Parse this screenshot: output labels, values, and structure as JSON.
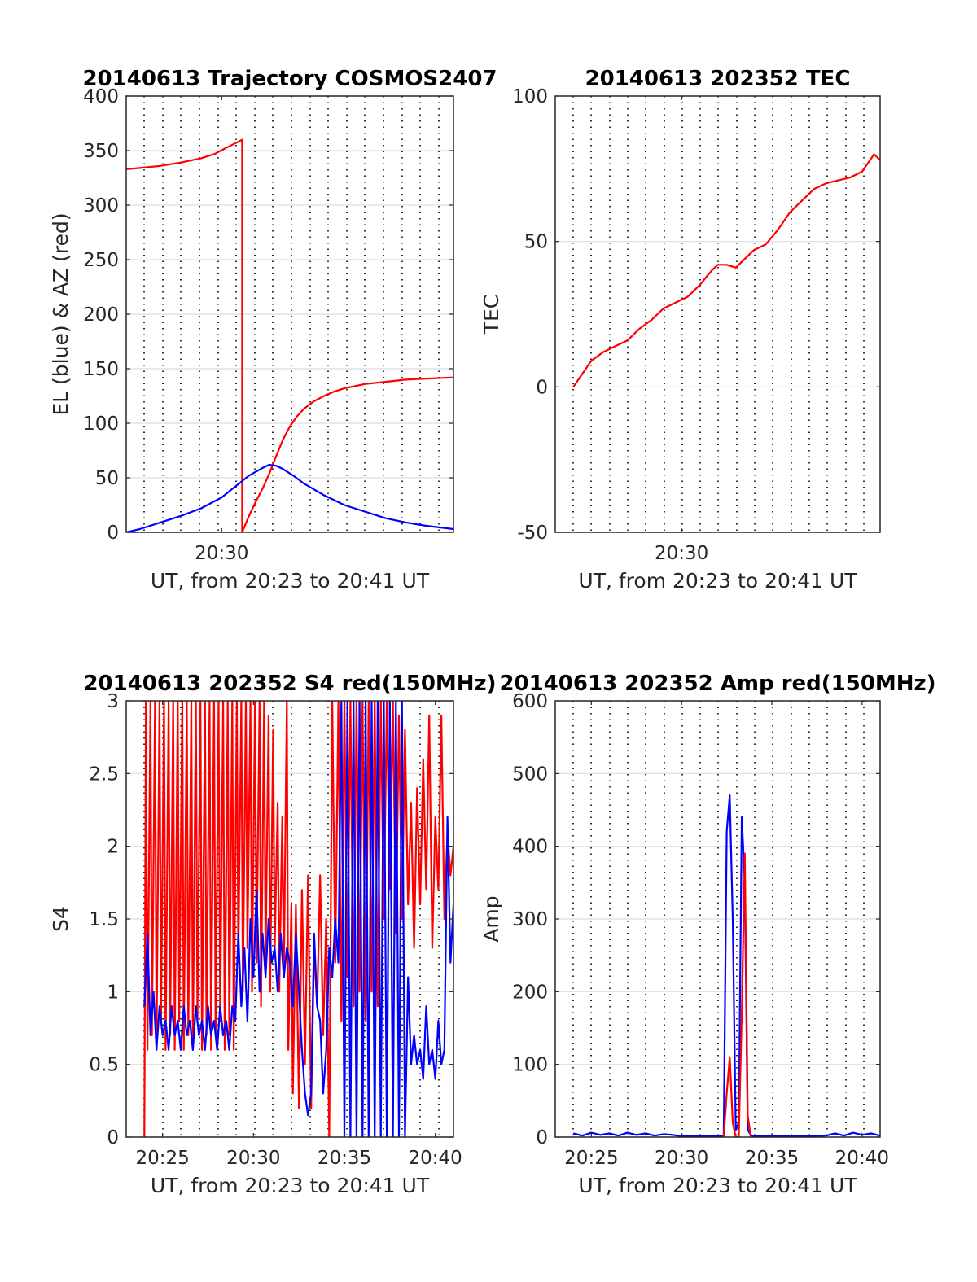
{
  "chart_data": [
    {
      "id": "trajectory",
      "type": "line",
      "title": "20140613 Trajectory COSMOS2407",
      "xlabel": "UT, from 20:23 to 20:41 UT",
      "ylabel": "EL (blue) & AZ (red)",
      "xlim": [
        "20:25:20",
        "20:41:20"
      ],
      "ylim": [
        0,
        400
      ],
      "yticks": [
        0,
        50,
        100,
        150,
        200,
        250,
        300,
        350,
        400
      ],
      "xticks": [
        {
          "value": "20:30",
          "label": "20:30"
        }
      ],
      "grid": true,
      "series": [
        {
          "color": "#ff0000",
          "x": [
            "20:25:20",
            "20:26:00",
            "20:27:00",
            "20:28:00",
            "20:29:00",
            "20:29:40",
            "20:30:10",
            "20:30:48",
            "20:31:00",
            "20:31:00",
            "20:31:20",
            "20:31:40",
            "20:32:00",
            "20:32:20",
            "20:32:40",
            "20:33:00",
            "20:33:20",
            "20:33:40",
            "20:34:00",
            "20:34:30",
            "20:35:00",
            "20:35:30",
            "20:36:00",
            "20:37:00",
            "20:38:00",
            "20:39:00",
            "20:40:00",
            "20:41:20"
          ],
          "y": [
            333,
            334,
            336,
            339,
            343,
            347,
            352,
            358,
            360,
            0,
            15,
            28,
            40,
            54,
            70,
            85,
            97,
            106,
            113,
            120,
            125,
            129,
            132,
            136,
            138,
            140,
            141,
            142
          ]
        },
        {
          "color": "#0000ff",
          "x": [
            "20:25:20",
            "20:26:00",
            "20:27:00",
            "20:28:00",
            "20:29:00",
            "20:30:00",
            "20:30:40",
            "20:31:20",
            "20:32:00",
            "20:32:20",
            "20:32:40",
            "20:33:00",
            "20:33:30",
            "20:34:00",
            "20:35:00",
            "20:36:00",
            "20:37:00",
            "20:38:00",
            "20:39:00",
            "20:40:00",
            "20:41:20"
          ],
          "y": [
            0,
            3,
            9,
            15,
            22,
            32,
            42,
            52,
            59,
            62,
            61,
            58,
            52,
            45,
            34,
            25,
            19,
            13,
            9,
            6,
            3
          ]
        }
      ]
    },
    {
      "id": "tec",
      "type": "line",
      "title": "20140613 202352 TEC",
      "xlabel": "UT, from 20:23 to 20:41 UT",
      "ylabel": "TEC",
      "xlim": [
        "20:23:00",
        "20:41:00"
      ],
      "ylim": [
        -50,
        100
      ],
      "yticks": [
        -50,
        0,
        50,
        100
      ],
      "xticks": [
        {
          "value": "20:30",
          "label": "20:30"
        }
      ],
      "grid": true,
      "series": [
        {
          "color": "#ff0000",
          "x": [
            "20:24:00",
            "20:24:20",
            "20:25:00",
            "20:25:40",
            "20:26:20",
            "20:27:00",
            "20:27:40",
            "20:28:20",
            "20:29:00",
            "20:29:40",
            "20:30:20",
            "20:31:00",
            "20:31:40",
            "20:32:00",
            "20:32:30",
            "20:33:00",
            "20:33:30",
            "20:34:00",
            "20:34:40",
            "20:35:20",
            "20:36:00",
            "20:36:40",
            "20:37:20",
            "20:38:00",
            "20:38:40",
            "20:39:20",
            "20:40:00",
            "20:40:40",
            "20:41:00"
          ],
          "y": [
            0,
            3,
            9,
            12,
            14,
            16,
            20,
            23,
            27,
            29,
            31,
            35,
            40,
            42,
            42,
            41,
            44,
            47,
            49,
            54,
            60,
            64,
            68,
            70,
            71,
            72,
            74,
            80,
            78
          ]
        }
      ]
    },
    {
      "id": "s4",
      "type": "line",
      "title": "20140613 202352 S4 red(150MHz)",
      "xlabel": "UT, from 20:23 to 20:41 UT",
      "ylabel": "S4",
      "xlim": [
        "20:23:00",
        "20:41:00"
      ],
      "ylim": [
        0,
        3
      ],
      "yticks": [
        0,
        0.5,
        1,
        1.5,
        2,
        2.5,
        3
      ],
      "xticks": [
        {
          "value": "20:25",
          "label": "20:25"
        },
        {
          "value": "20:30",
          "label": "20:30"
        },
        {
          "value": "20:35",
          "label": "20:35"
        },
        {
          "value": "20:40",
          "label": "20:40"
        }
      ],
      "grid": true,
      "series": [
        {
          "color": "#ff0000",
          "x": [
            "20:24:00",
            "20:24:05",
            "20:24:10",
            "20:24:20",
            "20:24:25",
            "20:24:35",
            "20:24:40",
            "20:24:50",
            "20:24:55",
            "20:25:05",
            "20:25:10",
            "20:25:20",
            "20:25:25",
            "20:25:35",
            "20:25:40",
            "20:25:50",
            "20:25:55",
            "20:26:05",
            "20:26:10",
            "20:26:20",
            "20:26:25",
            "20:26:35",
            "20:26:40",
            "20:26:50",
            "20:26:55",
            "20:27:05",
            "20:27:10",
            "20:27:20",
            "20:27:25",
            "20:27:35",
            "20:27:40",
            "20:27:50",
            "20:27:55",
            "20:28:05",
            "20:28:10",
            "20:28:20",
            "20:28:25",
            "20:28:35",
            "20:28:40",
            "20:28:50",
            "20:28:55",
            "20:29:05",
            "20:29:10",
            "20:29:20",
            "20:29:25",
            "20:29:35",
            "20:29:40",
            "20:29:50",
            "20:29:55",
            "20:30:05",
            "20:30:10",
            "20:30:20",
            "20:30:25",
            "20:30:35",
            "20:30:40",
            "20:30:50",
            "20:30:55",
            "20:31:05",
            "20:31:10",
            "20:31:20",
            "20:31:25",
            "20:31:35",
            "20:31:40",
            "20:31:50",
            "20:31:55",
            "20:32:05",
            "20:32:10",
            "20:32:20",
            "20:32:30",
            "20:32:40",
            "20:32:50",
            "20:33:00",
            "20:33:10",
            "20:33:20",
            "20:33:30",
            "20:33:40",
            "20:33:50",
            "20:34:00",
            "20:34:10",
            "20:34:20",
            "20:34:30",
            "20:34:40",
            "20:34:50",
            "20:35:00",
            "20:35:10",
            "20:35:20",
            "20:35:30",
            "20:35:40",
            "20:35:50",
            "20:36:00",
            "20:36:10",
            "20:36:20",
            "20:36:30",
            "20:36:40",
            "20:36:50",
            "20:37:00",
            "20:37:10",
            "20:37:20",
            "20:37:30",
            "20:37:40",
            "20:37:50",
            "20:38:00",
            "20:38:10",
            "20:38:20",
            "20:38:30",
            "20:38:40",
            "20:38:50",
            "20:39:00",
            "20:39:10",
            "20:39:20",
            "20:39:30",
            "20:39:40",
            "20:39:50",
            "20:40:00",
            "20:40:10",
            "20:40:20",
            "20:40:30",
            "20:40:40",
            "20:40:50",
            "20:41:00"
          ],
          "y": [
            0,
            3,
            0.6,
            3,
            0.7,
            3,
            0.6,
            3,
            0.8,
            3,
            0.6,
            3,
            0.7,
            3,
            0.6,
            3,
            0.8,
            3,
            0.6,
            3,
            0.7,
            3,
            0.6,
            3,
            0.8,
            3,
            0.6,
            3,
            0.7,
            3,
            0.6,
            3,
            0.7,
            3,
            0.8,
            3,
            0.6,
            3,
            0.7,
            3,
            0.6,
            3,
            1.2,
            3,
            1.0,
            3,
            1.3,
            3,
            1.0,
            3,
            1.2,
            3,
            0.9,
            3,
            1.2,
            2.9,
            1.0,
            2.8,
            1.3,
            2.3,
            1.0,
            2.2,
            1.1,
            3,
            0.6,
            1.6,
            0.3,
            1.6,
            0.2,
            1.7,
            0.5,
            1.8,
            0.2,
            1.3,
            0.9,
            1.8,
            0.7,
            1.5,
            0,
            3,
            1.2,
            3,
            0.8,
            3,
            1.1,
            3,
            0.9,
            3,
            1.0,
            3,
            0.8,
            3,
            1.0,
            3,
            0.9,
            3,
            1.5,
            3,
            1.7,
            3,
            1.4,
            2.9,
            1.5,
            2.8,
            1.6,
            2.3,
            1.3,
            2.4,
            1.6,
            2.6,
            1.7,
            2.9,
            1.3,
            2.2,
            1.7,
            2.9,
            1.5,
            2.1,
            1.8,
            2.0
          ]
        },
        {
          "color": "#0000ff",
          "x": [
            "20:24:00",
            "20:24:10",
            "20:24:20",
            "20:24:30",
            "20:24:40",
            "20:24:50",
            "20:25:00",
            "20:25:10",
            "20:25:20",
            "20:25:30",
            "20:25:40",
            "20:25:50",
            "20:26:00",
            "20:26:10",
            "20:26:20",
            "20:26:30",
            "20:26:40",
            "20:26:50",
            "20:27:00",
            "20:27:10",
            "20:27:20",
            "20:27:30",
            "20:27:40",
            "20:27:50",
            "20:28:00",
            "20:28:10",
            "20:28:20",
            "20:28:30",
            "20:28:40",
            "20:28:50",
            "20:29:00",
            "20:29:10",
            "20:29:20",
            "20:29:30",
            "20:29:40",
            "20:29:50",
            "20:30:00",
            "20:30:10",
            "20:30:20",
            "20:30:30",
            "20:30:40",
            "20:30:50",
            "20:31:00",
            "20:31:10",
            "20:31:20",
            "20:31:30",
            "20:31:40",
            "20:31:50",
            "20:32:00",
            "20:32:10",
            "20:32:20",
            "20:32:30",
            "20:32:40",
            "20:32:50",
            "20:33:00",
            "20:33:10",
            "20:33:20",
            "20:33:30",
            "20:33:40",
            "20:33:50",
            "20:34:00",
            "20:34:10",
            "20:34:20",
            "20:34:30",
            "20:34:40",
            "20:34:50",
            "20:35:00",
            "20:35:10",
            "20:35:20",
            "20:35:30",
            "20:35:40",
            "20:35:50",
            "20:36:00",
            "20:36:10",
            "20:36:20",
            "20:36:30",
            "20:36:40",
            "20:36:50",
            "20:37:00",
            "20:37:10",
            "20:37:20",
            "20:37:30",
            "20:37:40",
            "20:37:50",
            "20:38:00",
            "20:38:10",
            "20:38:20",
            "20:38:30",
            "20:38:40",
            "20:38:50",
            "20:39:00",
            "20:39:10",
            "20:39:20",
            "20:39:30",
            "20:39:40",
            "20:39:50",
            "20:40:00",
            "20:40:10",
            "20:40:20",
            "20:40:30",
            "20:40:40",
            "20:40:50",
            "20:41:00"
          ],
          "y": [
            0.9,
            1.4,
            0.7,
            1.0,
            0.6,
            0.9,
            0.7,
            0.8,
            0.6,
            0.9,
            0.7,
            0.8,
            0.6,
            0.9,
            0.7,
            0.8,
            0.6,
            0.9,
            0.7,
            0.8,
            0.6,
            0.9,
            0.7,
            0.8,
            0.6,
            0.9,
            0.7,
            0.8,
            0.6,
            0.9,
            0.8,
            1.4,
            0.9,
            1.3,
            0.8,
            1.5,
            1.1,
            1.7,
            1.0,
            1.4,
            1.1,
            1.5,
            1.2,
            1.3,
            1.0,
            1.4,
            1.1,
            1.3,
            1.2,
            0.9,
            1.4,
            1.0,
            0.6,
            0.3,
            0.15,
            0.3,
            1.4,
            0.9,
            0.8,
            0.3,
            0.6,
            1.3,
            1.1,
            1.5,
            1.2,
            3,
            0,
            3,
            0,
            3,
            0,
            3,
            0,
            3,
            0,
            3,
            0,
            3,
            0,
            3,
            0,
            3,
            0,
            3,
            0,
            3,
            0,
            1.1,
            0.5,
            0.7,
            0.5,
            0.6,
            0.4,
            0.9,
            0.5,
            0.6,
            0.4,
            0.8,
            0.5,
            0.6,
            2.2,
            1.2,
            1.6
          ]
        }
      ]
    },
    {
      "id": "amp",
      "type": "line",
      "title": "20140613 202352 Amp red(150MHz)",
      "xlabel": "UT, from 20:23 to 20:41 UT",
      "ylabel": "Amp",
      "xlim": [
        "20:23:00",
        "20:41:00"
      ],
      "ylim": [
        0,
        600
      ],
      "yticks": [
        0,
        100,
        200,
        300,
        400,
        500,
        600
      ],
      "xticks": [
        {
          "value": "20:25",
          "label": "20:25"
        },
        {
          "value": "20:30",
          "label": "20:30"
        },
        {
          "value": "20:35",
          "label": "20:35"
        },
        {
          "value": "20:40",
          "label": "20:40"
        }
      ],
      "grid": true,
      "series": [
        {
          "color": "#0000ff",
          "x": [
            "20:24:00",
            "20:24:30",
            "20:25:00",
            "20:25:30",
            "20:26:00",
            "20:26:30",
            "20:27:00",
            "20:27:30",
            "20:28:00",
            "20:28:30",
            "20:29:00",
            "20:29:30",
            "20:30:00",
            "20:30:30",
            "20:31:00",
            "20:31:30",
            "20:32:00",
            "20:32:20",
            "20:32:30",
            "20:32:40",
            "20:32:50",
            "20:33:00",
            "20:33:10",
            "20:33:20",
            "20:33:30",
            "20:33:40",
            "20:33:50",
            "20:34:00",
            "20:35:00",
            "20:36:00",
            "20:37:00",
            "20:38:00",
            "20:38:30",
            "20:39:00",
            "20:39:30",
            "20:40:00",
            "20:40:30",
            "20:41:00"
          ],
          "y": [
            5,
            2,
            6,
            3,
            5,
            2,
            6,
            3,
            5,
            2,
            4,
            3,
            1,
            1,
            1,
            1,
            1,
            2,
            420,
            470,
            300,
            10,
            20,
            440,
            350,
            10,
            3,
            1,
            1,
            1,
            1,
            2,
            5,
            2,
            6,
            3,
            5,
            2
          ]
        },
        {
          "color": "#ff0000",
          "x": [
            "20:32:20",
            "20:32:30",
            "20:32:40",
            "20:32:50",
            "20:33:00",
            "20:33:10",
            "20:33:20",
            "20:33:30",
            "20:33:40",
            "20:33:50"
          ],
          "y": [
            0,
            60,
            110,
            20,
            0,
            0,
            170,
            390,
            30,
            0
          ]
        }
      ]
    }
  ]
}
